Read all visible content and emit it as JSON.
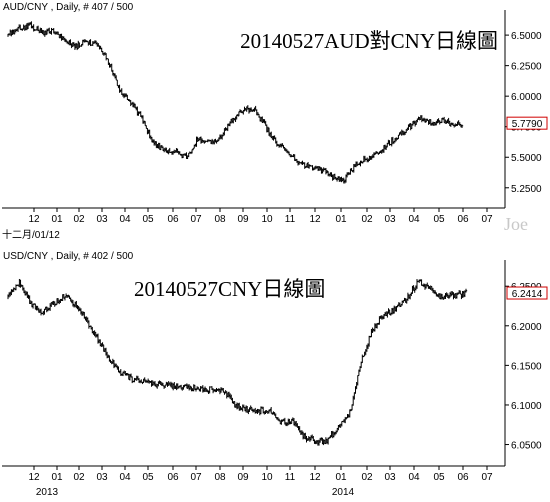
{
  "chart_data": [
    {
      "type": "line",
      "header": "AUD/CNY , Daily, # 407 / 500",
      "title": "20140527AUD對CNY日線圖",
      "ylim": [
        5.15,
        6.64
      ],
      "yticks": [
        "6.5000",
        "6.2500",
        "6.0000",
        "5.7500",
        "5.5000",
        "5.2500"
      ],
      "ytick_values": [
        6.5,
        6.25,
        6.0,
        5.75,
        5.5,
        5.25
      ],
      "xticks": [
        "12",
        "01",
        "02",
        "03",
        "04",
        "05",
        "06",
        "07",
        "08",
        "09",
        "10",
        "11",
        "12",
        "01",
        "02",
        "03",
        "04",
        "05",
        "06",
        "07"
      ],
      "year_labels": [
        "2014"
      ],
      "last_value_label": "5.7790",
      "last_value": 5.779,
      "grid": false,
      "series": [
        {
          "x_index": [
            0,
            10,
            20,
            30,
            40,
            50,
            60,
            70,
            80,
            90,
            100,
            110,
            120,
            130,
            140,
            150,
            160,
            170,
            180,
            190,
            200,
            210,
            220,
            230,
            240,
            250,
            260,
            270,
            280,
            290,
            300,
            310,
            320,
            330,
            340,
            350,
            360,
            370,
            380,
            390,
            400,
            407
          ],
          "values": [
            6.5,
            6.56,
            6.58,
            6.52,
            6.54,
            6.46,
            6.4,
            6.45,
            6.42,
            6.28,
            6.06,
            5.95,
            5.82,
            5.62,
            5.56,
            5.55,
            5.5,
            5.65,
            5.62,
            5.66,
            5.8,
            5.88,
            5.9,
            5.76,
            5.62,
            5.55,
            5.46,
            5.42,
            5.4,
            5.35,
            5.3,
            5.42,
            5.48,
            5.52,
            5.6,
            5.68,
            5.75,
            5.82,
            5.78,
            5.8,
            5.76,
            5.779
          ]
        }
      ]
    },
    {
      "type": "line",
      "header": "USD/CNY , Daily, # 402 / 500",
      "title": "20140527CNY日線圖",
      "ylim": [
        6.033,
        6.273
      ],
      "yticks": [
        "6.2500",
        "6.2000",
        "6.1500",
        "6.1000",
        "6.0500"
      ],
      "ytick_values": [
        6.25,
        6.2,
        6.15,
        6.1,
        6.05
      ],
      "xticks": [
        "12",
        "01",
        "02",
        "03",
        "04",
        "05",
        "06",
        "07",
        "08",
        "09",
        "10",
        "11",
        "12",
        "01",
        "02",
        "03",
        "04",
        "05",
        "06",
        "07"
      ],
      "year_labels": [
        "2013",
        "2014"
      ],
      "last_value_label": "6.2414",
      "last_value": 6.2414,
      "grid": false,
      "series": [
        {
          "x_index": [
            0,
            10,
            20,
            30,
            40,
            50,
            60,
            70,
            80,
            90,
            100,
            110,
            120,
            130,
            140,
            150,
            160,
            170,
            180,
            190,
            200,
            210,
            220,
            230,
            240,
            250,
            260,
            270,
            280,
            290,
            300,
            310,
            320,
            330,
            340,
            350,
            360,
            370,
            380,
            390,
            400,
            402
          ],
          "values": [
            6.235,
            6.255,
            6.228,
            6.218,
            6.228,
            6.238,
            6.226,
            6.205,
            6.18,
            6.155,
            6.14,
            6.132,
            6.13,
            6.126,
            6.125,
            6.124,
            6.122,
            6.121,
            6.119,
            6.118,
            6.098,
            6.094,
            6.093,
            6.092,
            6.078,
            6.078,
            6.06,
            6.054,
            6.055,
            6.072,
            6.09,
            6.155,
            6.195,
            6.215,
            6.22,
            6.235,
            6.255,
            6.248,
            6.236,
            6.238,
            6.24,
            6.2414
          ]
        }
      ]
    }
  ],
  "extra_labels": {
    "date_label": "十二月/01/12",
    "watermark": "Joe"
  }
}
